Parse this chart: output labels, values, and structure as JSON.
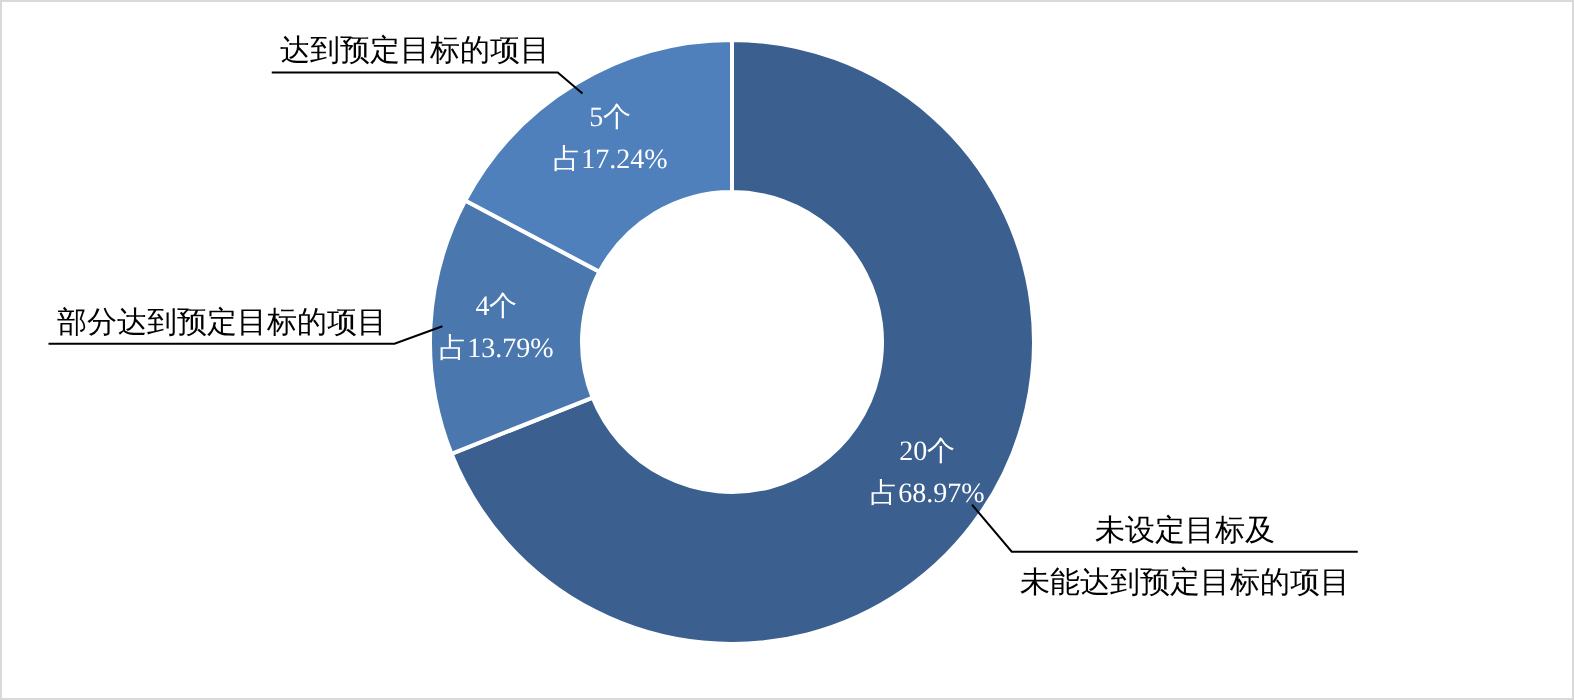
{
  "chart_data": {
    "type": "donut",
    "categories": [
      "未设定目标及未能达到预定目标的项目",
      "部分达到预定目标的项目",
      "达到预定目标的项目"
    ],
    "values": [
      20,
      4,
      5
    ],
    "colors": [
      "#3b5f8f",
      "#4a77ad",
      "#4f80bc"
    ],
    "value_labels": [
      "20个占68.97%",
      "4个占13.79%",
      "5个占17.24%"
    ]
  }
}
